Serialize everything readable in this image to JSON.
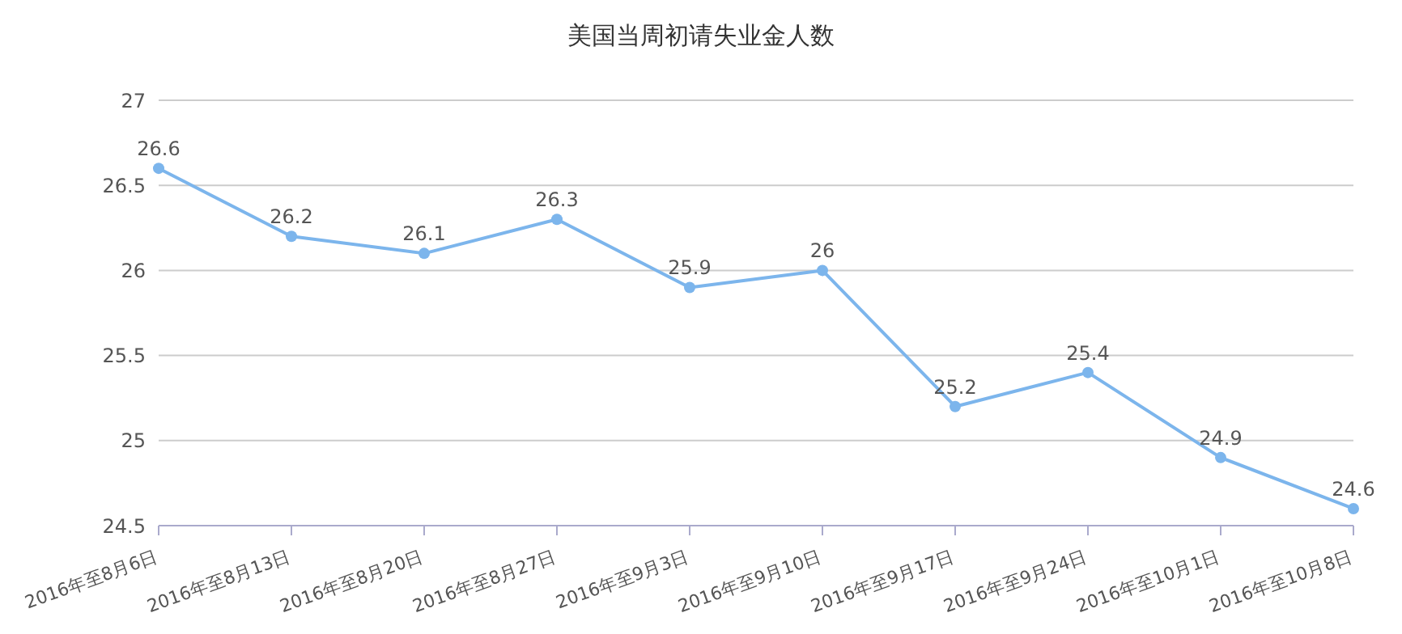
{
  "chart_data": {
    "type": "line",
    "title": "美国当周初请失业金人数",
    "categories": [
      "2016年至8月6日",
      "2016年至8月13日",
      "2016年至8月20日",
      "2016年至8月27日",
      "2016年至9月3日",
      "2016年至9月10日",
      "2016年至9月17日",
      "2016年至9月24日",
      "2016年至10月1日",
      "2016年至10月8日"
    ],
    "series": [
      {
        "color": "#7cb5ec",
        "values": [
          26.6,
          26.2,
          26.1,
          26.3,
          25.9,
          26,
          25.2,
          25.4,
          24.9,
          24.6
        ]
      }
    ],
    "ylim": [
      24.5,
      27
    ],
    "yticks": [
      24.5,
      25,
      25.5,
      26,
      26.5,
      27
    ],
    "grid": "y",
    "marker": "circle",
    "data_labels": true
  }
}
